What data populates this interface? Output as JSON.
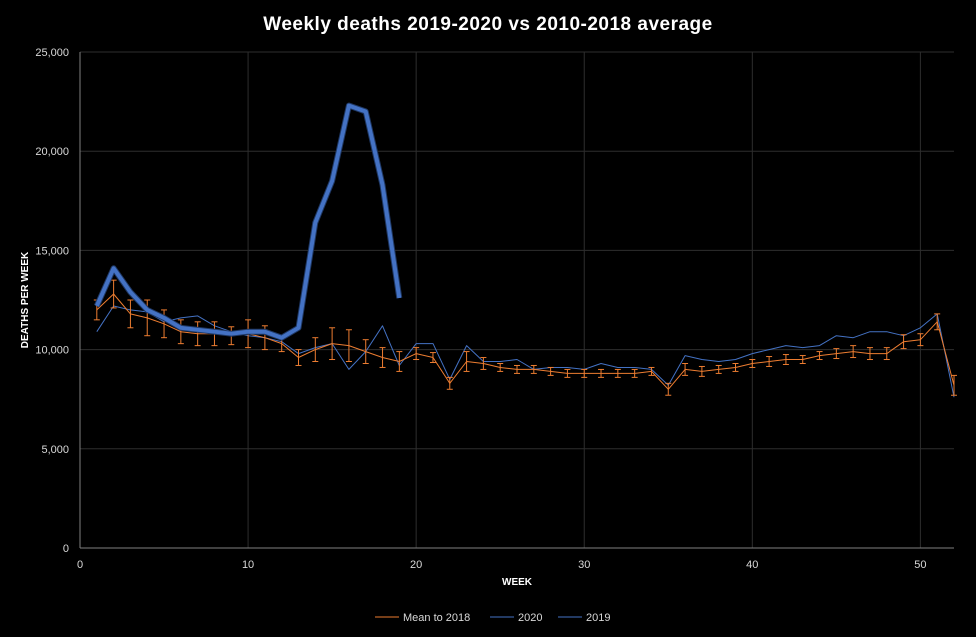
{
  "chart_data": {
    "type": "line",
    "title": "Weekly deaths  2019-2020  vs  2010-2018  average",
    "xlabel": "WEEK",
    "ylabel": "DEATHS PER WEEK",
    "xlim": [
      0,
      52
    ],
    "ylim": [
      0,
      25000
    ],
    "x_ticks": [
      0,
      10,
      20,
      30,
      40,
      50
    ],
    "y_ticks": [
      0,
      5000,
      10000,
      15000,
      20000,
      25000
    ],
    "x_tick_labels": [
      "0",
      "10",
      "20",
      "30",
      "40",
      "50"
    ],
    "y_tick_labels": [
      "0",
      "5,000",
      "10,000",
      "15,000",
      "20,000",
      "25,000"
    ],
    "grid": true,
    "legend_position": "bottom",
    "series": [
      {
        "name": "Mean to 2018",
        "color": "#ed7d31",
        "x": [
          1,
          2,
          3,
          4,
          5,
          6,
          7,
          8,
          9,
          10,
          11,
          12,
          13,
          14,
          15,
          16,
          17,
          18,
          19,
          20,
          21,
          22,
          23,
          24,
          25,
          26,
          27,
          28,
          29,
          30,
          31,
          32,
          33,
          34,
          35,
          36,
          37,
          38,
          39,
          40,
          41,
          42,
          43,
          44,
          45,
          46,
          47,
          48,
          49,
          50,
          51,
          52
        ],
        "values": [
          12000,
          12800,
          11800,
          11600,
          11300,
          10900,
          10800,
          10800,
          10700,
          10800,
          10600,
          10300,
          9600,
          10000,
          10300,
          10200,
          9900,
          9600,
          9400,
          9800,
          9600,
          8300,
          9400,
          9300,
          9100,
          9000,
          9000,
          8900,
          8800,
          8800,
          8800,
          8800,
          8800,
          8900,
          8000,
          9000,
          8900,
          9000,
          9100,
          9300,
          9400,
          9500,
          9500,
          9700,
          9800,
          9900,
          9800,
          9800,
          10400,
          10500,
          11400,
          8200
        ],
        "error": [
          500,
          700,
          700,
          900,
          700,
          600,
          600,
          600,
          450,
          700,
          600,
          400,
          400,
          600,
          800,
          800,
          600,
          500,
          500,
          300,
          250,
          300,
          500,
          300,
          200,
          200,
          200,
          200,
          200,
          200,
          200,
          200,
          200,
          200,
          300,
          300,
          250,
          200,
          200,
          200,
          250,
          250,
          200,
          200,
          250,
          300,
          300,
          300,
          350,
          300,
          400,
          500
        ]
      },
      {
        "name": "2020",
        "color": "#4472c4",
        "x": [
          1,
          2,
          3,
          4,
          5,
          6,
          7,
          8,
          9,
          10,
          11,
          12,
          13,
          14,
          15,
          16,
          17,
          18,
          19
        ],
        "values": [
          12200,
          14100,
          12900,
          12000,
          11600,
          11100,
          11000,
          10900,
          10800,
          10900,
          10900,
          10600,
          11100,
          16400,
          18500,
          22300,
          22000,
          18300,
          12600
        ]
      },
      {
        "name": "2019",
        "color": "#4472c4",
        "x": [
          1,
          2,
          3,
          4,
          5,
          6,
          7,
          8,
          9,
          10,
          11,
          12,
          13,
          14,
          15,
          16,
          17,
          18,
          19,
          20,
          21,
          22,
          23,
          24,
          25,
          26,
          27,
          28,
          29,
          30,
          31,
          32,
          33,
          34,
          35,
          36,
          37,
          38,
          39,
          40,
          41,
          42,
          43,
          44,
          45,
          46,
          47,
          48,
          49,
          50,
          51,
          52
        ],
        "values": [
          10900,
          12200,
          12000,
          11900,
          11400,
          11600,
          11700,
          11200,
          10900,
          10700,
          10600,
          10400,
          9800,
          10100,
          10300,
          9000,
          9900,
          11200,
          9200,
          10300,
          10300,
          8500,
          10200,
          9400,
          9400,
          9500,
          9000,
          9100,
          9100,
          9000,
          9300,
          9100,
          9100,
          9000,
          8200,
          9700,
          9500,
          9400,
          9500,
          9800,
          10000,
          10200,
          10100,
          10200,
          10700,
          10600,
          10900,
          10900,
          10700,
          11100,
          11800,
          7600
        ]
      }
    ]
  }
}
